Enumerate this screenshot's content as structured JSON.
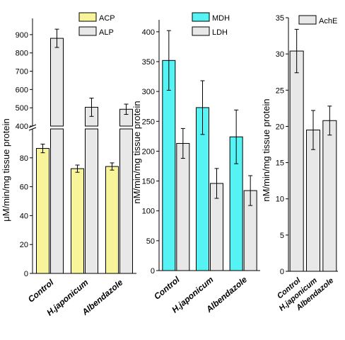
{
  "chart_data": [
    {
      "type": "bar",
      "categories": [
        "Control",
        "H.japonicum",
        "Albendazole"
      ],
      "xlabel": "",
      "ylabel": "μM/min/mg tissue protein",
      "y_axis_break": true,
      "ylim_lower": [
        0,
        100
      ],
      "ylim_upper": [
        400,
        950
      ],
      "yticks_lower": [
        "0",
        "20",
        "40",
        "60",
        "80"
      ],
      "yticks_upper": [
        "400",
        "500",
        "600",
        "700",
        "800",
        "900"
      ],
      "legend_position": "top-right",
      "series": [
        {
          "name": "ACP",
          "color": "#f7f49a",
          "values": [
            86.5,
            72.5,
            74
          ],
          "errors": [
            3,
            2.5,
            2.5
          ]
        },
        {
          "name": "ALP",
          "color": "#e8e8e8",
          "values": [
            880,
            503,
            492
          ],
          "errors": [
            50,
            50,
            28
          ]
        }
      ]
    },
    {
      "type": "bar",
      "categories": [
        "Control",
        "H.japonicum",
        "Albendazole"
      ],
      "xlabel": "",
      "ylabel": "nM/min/mg tissue protein",
      "ylim": [
        0,
        420
      ],
      "yticks": [
        "0",
        "50",
        "100",
        "150",
        "200",
        "250",
        "300",
        "350",
        "400"
      ],
      "legend_position": "top-right",
      "series": [
        {
          "name": "MDH",
          "color": "#55f3f3",
          "values": [
            352,
            273,
            224
          ],
          "errors": [
            50,
            45,
            45
          ]
        },
        {
          "name": "LDH",
          "color": "#e8e8e8",
          "values": [
            213,
            146,
            134
          ],
          "errors": [
            25,
            25,
            25
          ]
        }
      ]
    },
    {
      "type": "bar",
      "categories": [
        "Control",
        "H.japonicum",
        "Albendazole"
      ],
      "xlabel": "",
      "ylabel": "nM/min/mg tissue protein",
      "ylim": [
        0,
        35
      ],
      "yticks": [
        "0",
        "5",
        "10",
        "15",
        "20",
        "25",
        "30",
        "35"
      ],
      "legend_position": "top-right",
      "series": [
        {
          "name": "AchE",
          "color": "#e8e8e8",
          "values": [
            30.4,
            19.5,
            20.8
          ],
          "errors": [
            3,
            2.7,
            2
          ]
        }
      ]
    }
  ]
}
